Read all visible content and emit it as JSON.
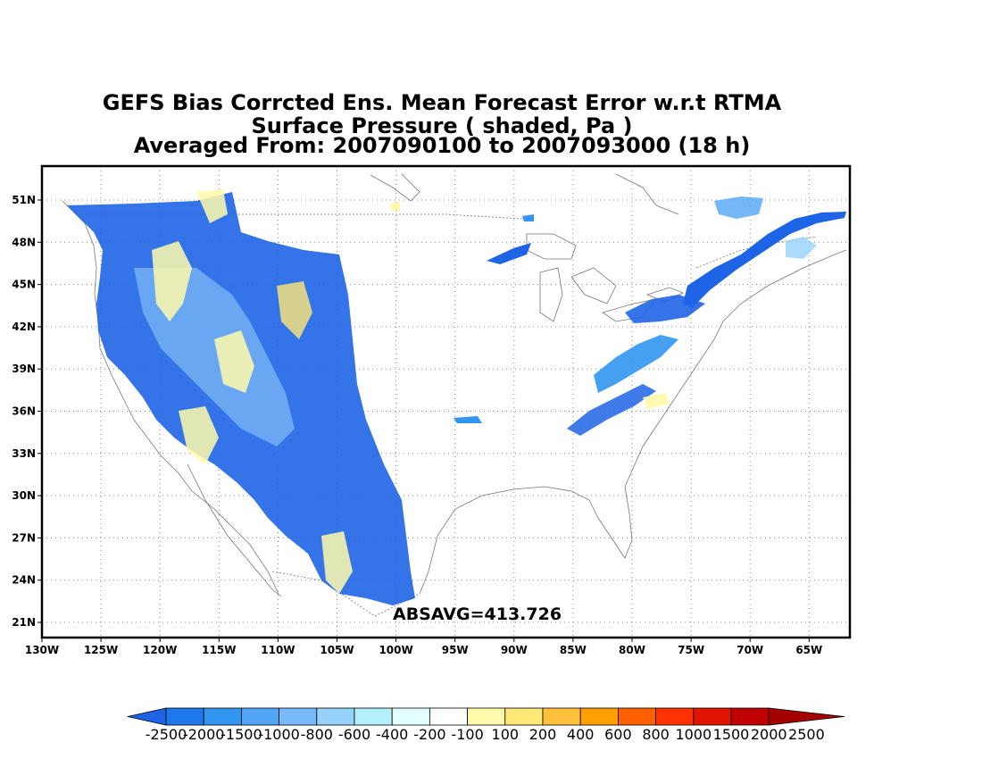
{
  "title": {
    "line1": "GEFS Bias Corrcted Ens. Mean Forecast Error w.r.t RTMA",
    "line2": "Surface Pressure ( shaded, Pa )",
    "line3": "Averaged From: 2007090100 to 2007093000 (18 h)"
  },
  "stat_label": "ABSAVG=413.726",
  "axes": {
    "lon_labels": [
      "130W",
      "125W",
      "120W",
      "115W",
      "110W",
      "105W",
      "100W",
      "95W",
      "90W",
      "85W",
      "80W",
      "75W",
      "70W",
      "65W"
    ],
    "lat_labels": [
      "51N",
      "48N",
      "45N",
      "42N",
      "39N",
      "36N",
      "33N",
      "30N",
      "27N",
      "24N",
      "21N"
    ]
  },
  "colorbar": {
    "labels": [
      "-2500",
      "-2000",
      "-1500",
      "-1000",
      "-800",
      "-600",
      "-400",
      "-200",
      "-100",
      "100",
      "200",
      "400",
      "600",
      "800",
      "1000",
      "1500",
      "2000",
      "2500"
    ],
    "colors": [
      "#1e64e6",
      "#1e78eb",
      "#3296f0",
      "#50a5f5",
      "#78b9fa",
      "#96d2fa",
      "#b4f0fa",
      "#e1ffff",
      "#ffffff",
      "#fffaaa",
      "#ffe878",
      "#ffc03c",
      "#ffa000",
      "#ff6000",
      "#ff3200",
      "#e11400",
      "#c00000",
      "#a50000"
    ]
  }
}
